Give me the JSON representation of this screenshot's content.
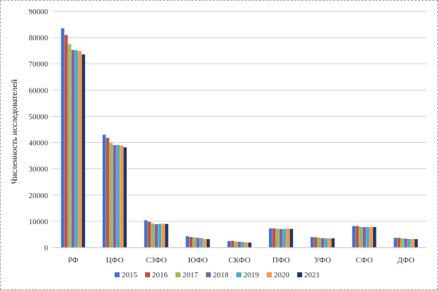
{
  "chart_data": {
    "type": "bar",
    "ylabel": "Численность исследователей",
    "xlabel": "",
    "ylim": [
      0,
      90000
    ],
    "ytick_step": 10000,
    "grid": true,
    "legend": "bottom",
    "categories": [
      "РФ",
      "ЦФО",
      "СЗФО",
      "ЮФО",
      "СКФО",
      "ПФО",
      "УФО",
      "СФО",
      "ДФО"
    ],
    "series": [
      {
        "name": "2015",
        "color": "#4472C4",
        "values": [
          83500,
          43000,
          10400,
          4300,
          2500,
          7300,
          4000,
          8200,
          3700
        ]
      },
      {
        "name": "2016",
        "color": "#C0504D",
        "values": [
          81000,
          41800,
          9800,
          4000,
          2600,
          7300,
          3900,
          8200,
          3700
        ]
      },
      {
        "name": "2017",
        "color": "#9BBB59",
        "values": [
          77500,
          39800,
          9200,
          3900,
          2300,
          7200,
          3800,
          7900,
          3500
        ]
      },
      {
        "name": "2018",
        "color": "#8064A2",
        "values": [
          75300,
          39000,
          8900,
          3700,
          2200,
          7100,
          3600,
          7800,
          3400
        ]
      },
      {
        "name": "2019",
        "color": "#4BACC6",
        "values": [
          75200,
          39100,
          9000,
          3600,
          2100,
          7100,
          3500,
          7800,
          3300
        ]
      },
      {
        "name": "2020",
        "color": "#F79646",
        "values": [
          74800,
          38900,
          9100,
          3300,
          2000,
          7300,
          3500,
          7800,
          3300
        ]
      },
      {
        "name": "2021",
        "color": "#1F3864",
        "values": [
          73600,
          38200,
          9000,
          3200,
          1900,
          7100,
          3500,
          7800,
          3200
        ]
      }
    ]
  }
}
